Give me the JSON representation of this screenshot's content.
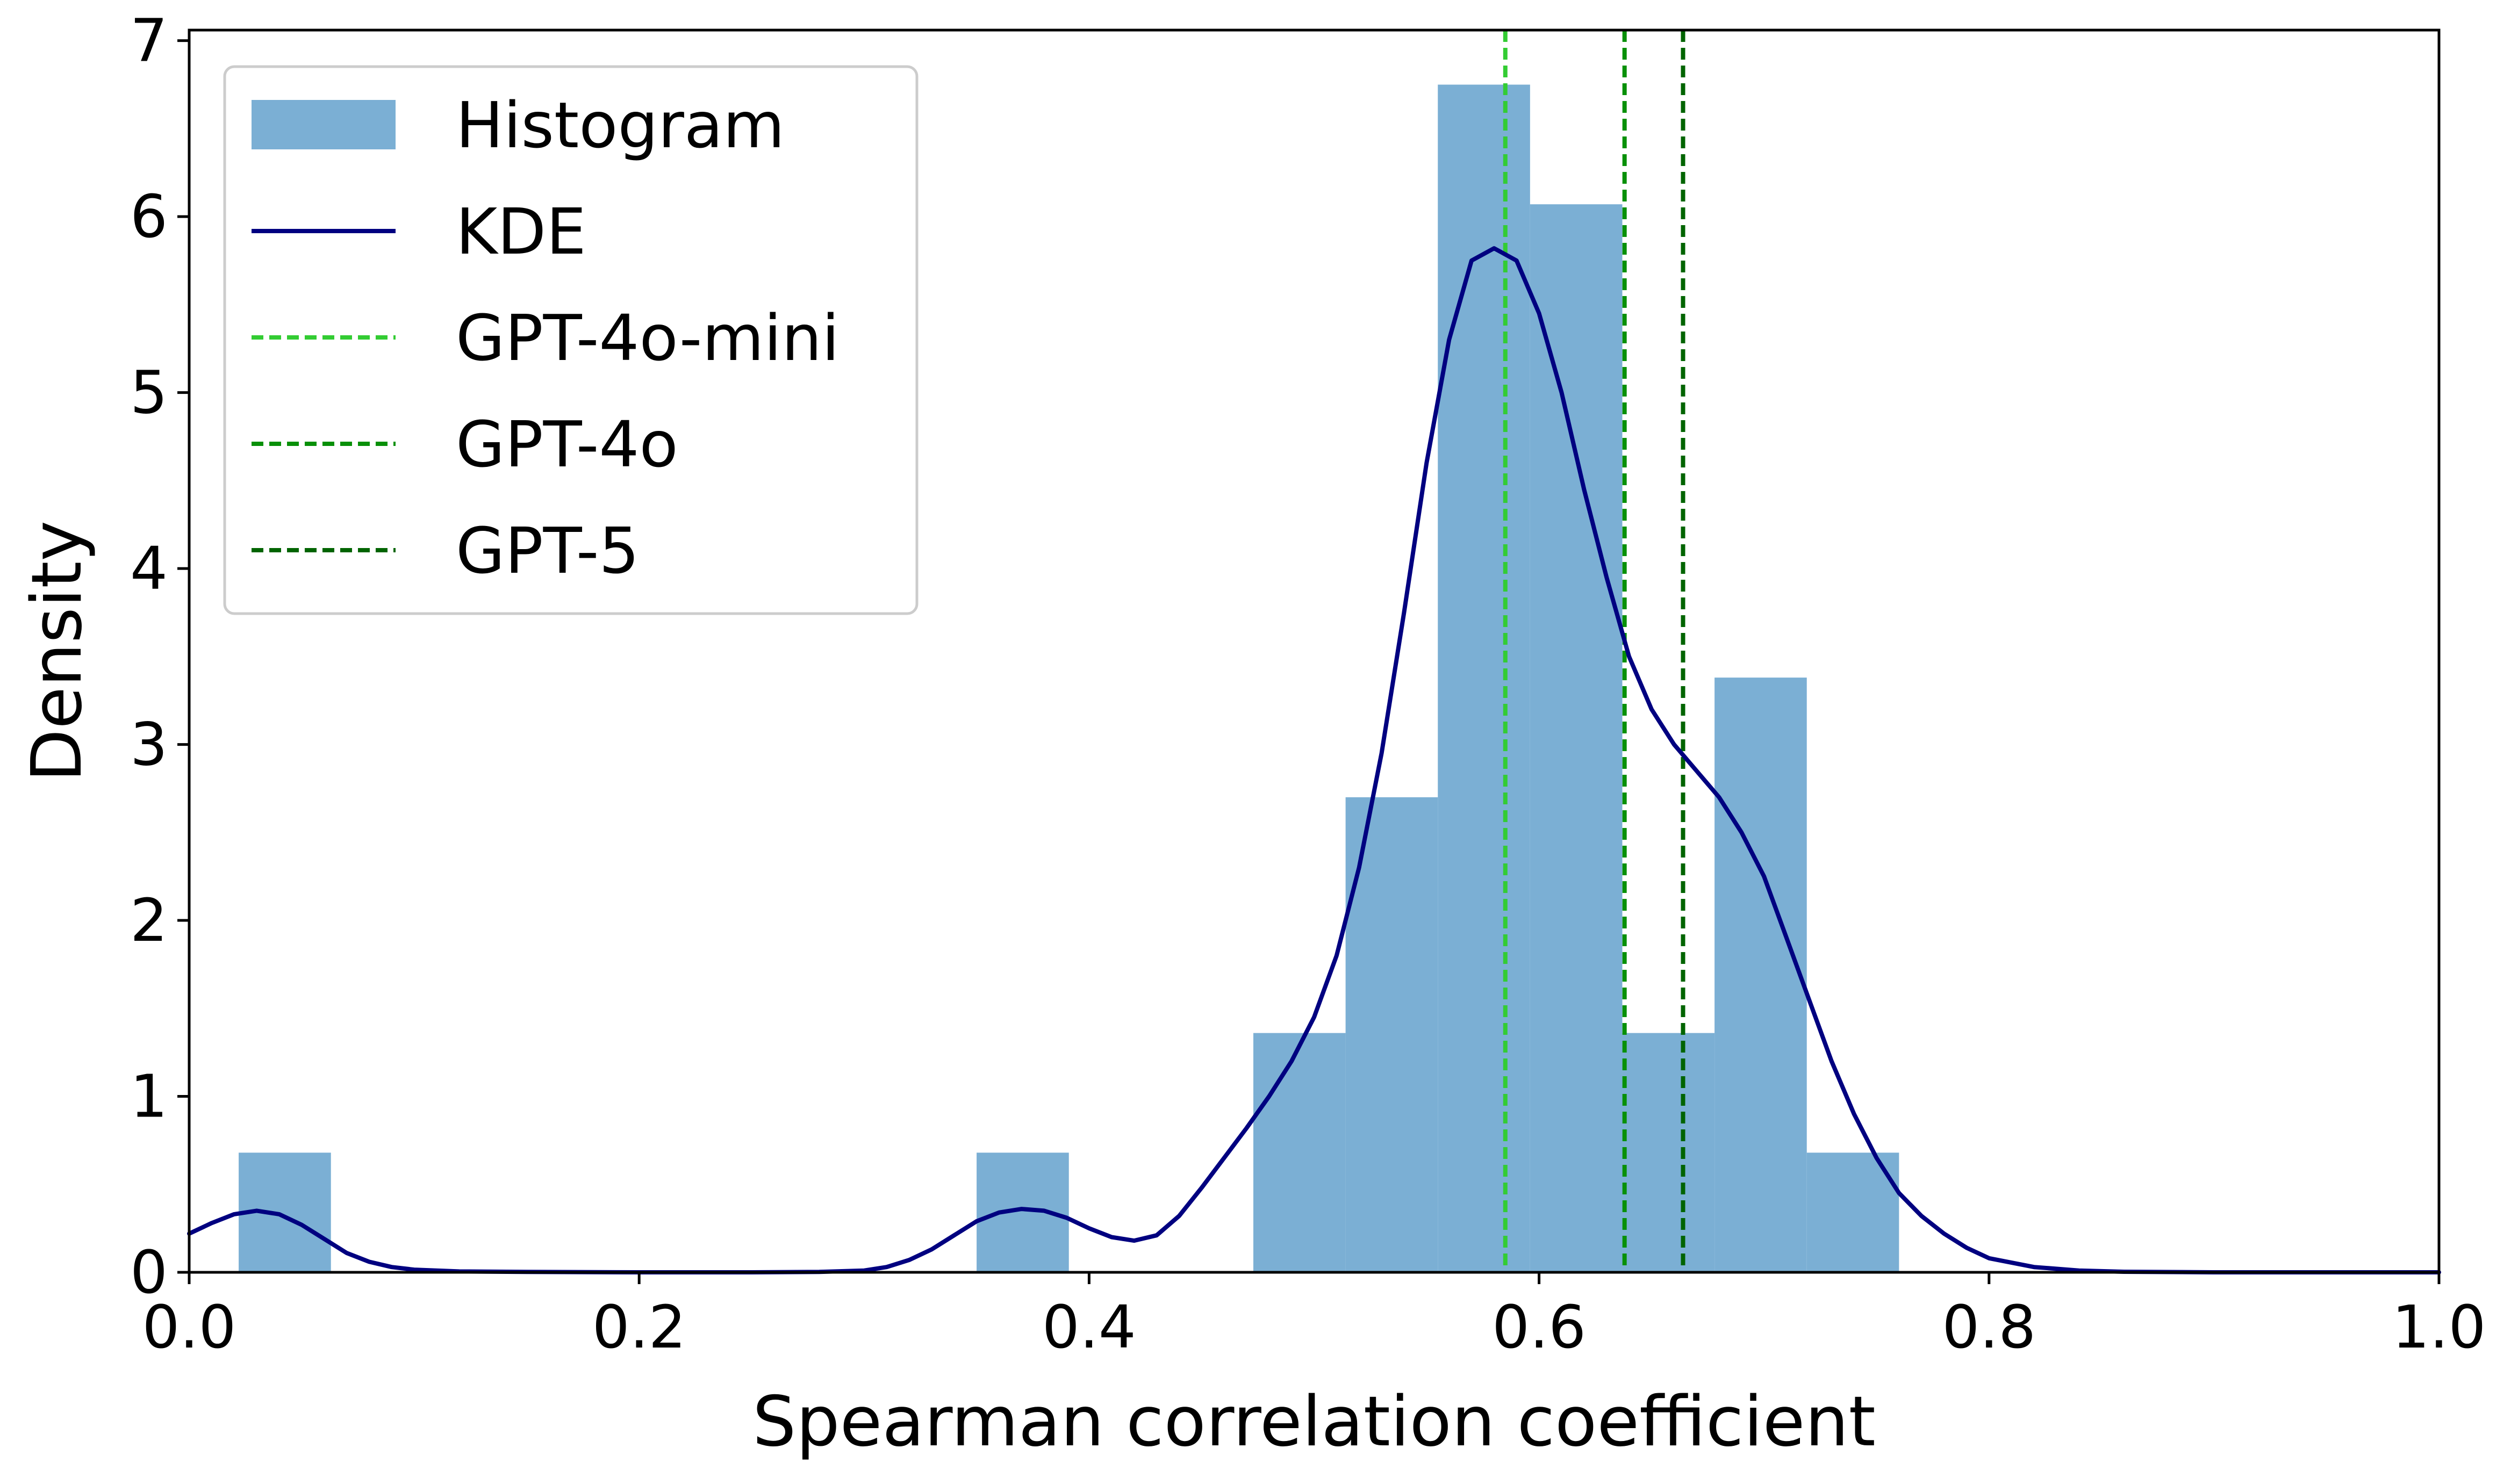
{
  "chart_data": {
    "type": "histogram",
    "xlabel": "Spearman correlation coefficient",
    "ylabel": "Density",
    "xlim": [
      0.0,
      1.0
    ],
    "ylim": [
      0,
      7.06
    ],
    "xticks": [
      "0.0",
      "0.2",
      "0.4",
      "0.6",
      "0.8",
      "1.0"
    ],
    "xtick_values": [
      0.0,
      0.2,
      0.4,
      0.6,
      0.8,
      1.0
    ],
    "yticks": [
      "0",
      "1",
      "2",
      "3",
      "4",
      "5",
      "6",
      "7"
    ],
    "ytick_values": [
      0,
      1,
      2,
      3,
      4,
      5,
      6,
      7
    ],
    "histogram": {
      "name": "Histogram",
      "color": "#7bafd4",
      "bin_edges": [
        0.022,
        0.063,
        0.104,
        0.145,
        0.186,
        0.227,
        0.268,
        0.309,
        0.35,
        0.391,
        0.432,
        0.473,
        0.514,
        0.555,
        0.596,
        0.637,
        0.678,
        0.719,
        0.76
      ],
      "densities": [
        0.68,
        0,
        0,
        0,
        0,
        0,
        0,
        0,
        0.68,
        0,
        0,
        1.36,
        2.7,
        6.75,
        6.07,
        1.36,
        3.38,
        0.68
      ]
    },
    "kde": {
      "name": "KDE",
      "color": "#000080",
      "x": [
        0.0,
        0.01,
        0.02,
        0.03,
        0.04,
        0.05,
        0.06,
        0.07,
        0.08,
        0.09,
        0.1,
        0.12,
        0.15,
        0.2,
        0.25,
        0.28,
        0.3,
        0.31,
        0.32,
        0.33,
        0.34,
        0.35,
        0.36,
        0.37,
        0.38,
        0.39,
        0.4,
        0.41,
        0.42,
        0.43,
        0.44,
        0.45,
        0.46,
        0.47,
        0.48,
        0.49,
        0.5,
        0.51,
        0.52,
        0.53,
        0.54,
        0.55,
        0.56,
        0.57,
        0.58,
        0.59,
        0.6,
        0.61,
        0.62,
        0.63,
        0.64,
        0.65,
        0.66,
        0.67,
        0.68,
        0.69,
        0.7,
        0.71,
        0.72,
        0.73,
        0.74,
        0.75,
        0.76,
        0.77,
        0.78,
        0.79,
        0.8,
        0.82,
        0.84,
        0.86,
        0.9,
        1.0
      ],
      "y": [
        0.22,
        0.28,
        0.33,
        0.35,
        0.33,
        0.27,
        0.19,
        0.11,
        0.06,
        0.03,
        0.015,
        0.005,
        0.002,
        0.0,
        0.0,
        0.002,
        0.01,
        0.03,
        0.07,
        0.13,
        0.21,
        0.29,
        0.34,
        0.36,
        0.35,
        0.31,
        0.25,
        0.2,
        0.18,
        0.21,
        0.32,
        0.48,
        0.65,
        0.82,
        1.0,
        1.2,
        1.45,
        1.8,
        2.3,
        2.95,
        3.75,
        4.6,
        5.3,
        5.75,
        5.82,
        5.75,
        5.45,
        5.0,
        4.45,
        3.95,
        3.5,
        3.2,
        3.0,
        2.85,
        2.7,
        2.5,
        2.25,
        1.9,
        1.55,
        1.2,
        0.9,
        0.65,
        0.45,
        0.32,
        0.22,
        0.14,
        0.08,
        0.03,
        0.01,
        0.003,
        0.0,
        0.0
      ]
    },
    "vlines": [
      {
        "name": "GPT-4o-mini",
        "x": 0.585,
        "color": "#33cc33"
      },
      {
        "name": "GPT-4o",
        "x": 0.638,
        "color": "#089008"
      },
      {
        "name": "GPT-5",
        "x": 0.664,
        "color": "#006400"
      }
    ],
    "legend": {
      "position": "upper-left",
      "entries": [
        "Histogram",
        "KDE",
        "GPT-4o-mini",
        "GPT-4o",
        "GPT-5"
      ]
    },
    "grid": false
  }
}
